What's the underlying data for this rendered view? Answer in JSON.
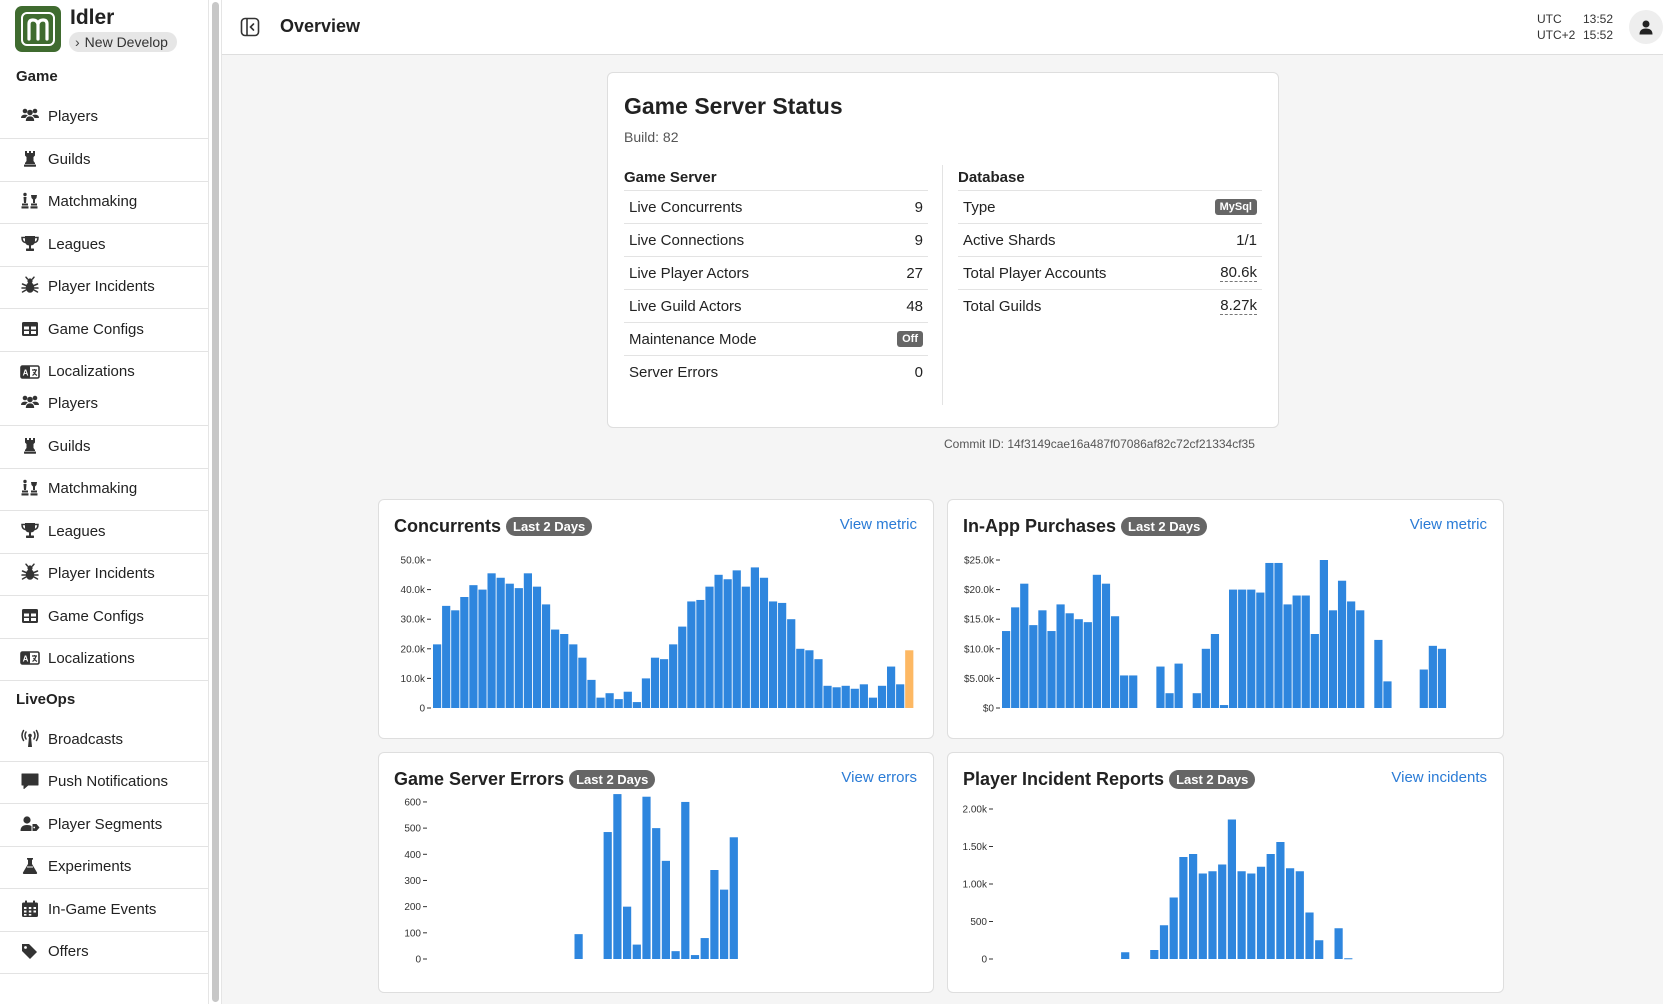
{
  "app": {
    "title": "Idler",
    "environment": "New Develop"
  },
  "sidebar": {
    "sections": [
      {
        "title": "Game",
        "items": [
          {
            "label": "Players",
            "icon": "users-icon"
          },
          {
            "label": "Guilds",
            "icon": "chess-rook-icon"
          },
          {
            "label": "Matchmaking",
            "icon": "chess-icon"
          },
          {
            "label": "Leagues",
            "icon": "trophy-icon"
          },
          {
            "label": "Player Incidents",
            "icon": "bug-icon"
          },
          {
            "label": "Game Configs",
            "icon": "table-icon"
          },
          {
            "label": "Localizations",
            "icon": "language-icon"
          },
          {
            "label": "Players",
            "icon": "users-icon"
          },
          {
            "label": "Guilds",
            "icon": "chess-rook-icon"
          },
          {
            "label": "Matchmaking",
            "icon": "chess-icon"
          },
          {
            "label": "Leagues",
            "icon": "trophy-icon"
          },
          {
            "label": "Player Incidents",
            "icon": "bug-icon"
          },
          {
            "label": "Game Configs",
            "icon": "table-icon"
          },
          {
            "label": "Localizations",
            "icon": "language-icon"
          }
        ]
      },
      {
        "title": "LiveOps",
        "items": [
          {
            "label": "Broadcasts",
            "icon": "broadcast-tower-icon"
          },
          {
            "label": "Push Notifications",
            "icon": "comment-icon"
          },
          {
            "label": "Player Segments",
            "icon": "user-tag-icon"
          },
          {
            "label": "Experiments",
            "icon": "flask-icon"
          },
          {
            "label": "In-Game Events",
            "icon": "calendar-icon"
          },
          {
            "label": "Offers",
            "icon": "tags-icon"
          }
        ]
      }
    ]
  },
  "header": {
    "title": "Overview",
    "clock": [
      {
        "tz": "UTC",
        "time": "13:52"
      },
      {
        "tz": "UTC+2",
        "time": "15:52"
      }
    ]
  },
  "status": {
    "title": "Game Server Status",
    "build": "Build: 82",
    "game_server": {
      "title": "Game Server",
      "rows": [
        {
          "label": "Live Concurrents",
          "value": "9"
        },
        {
          "label": "Live Connections",
          "value": "9"
        },
        {
          "label": "Live Player Actors",
          "value": "27"
        },
        {
          "label": "Live Guild Actors",
          "value": "48"
        },
        {
          "label": "Maintenance Mode",
          "value": "Off",
          "style": "pill"
        },
        {
          "label": "Server Errors",
          "value": "0"
        }
      ]
    },
    "database": {
      "title": "Database",
      "rows": [
        {
          "label": "Type",
          "value": "MySql",
          "style": "pill"
        },
        {
          "label": "Active Shards",
          "value": "1/1"
        },
        {
          "label": "Total Player Accounts",
          "value": "80.6k",
          "style": "dashed"
        },
        {
          "label": "Total Guilds",
          "value": "8.27k",
          "style": "dashed"
        }
      ]
    },
    "commit": "Commit ID: 14f3149cae16a487f07086af82c72cf21334cf35"
  },
  "colors": {
    "bar": "#2e86de",
    "bar_highlight": "#fdb863",
    "link": "#2a7bd6"
  },
  "chart_data": [
    {
      "type": "bar",
      "title": "Concurrents",
      "badge": "Last 2 Days",
      "link": "View metric",
      "yticks": [
        0,
        10000,
        20000,
        30000,
        40000,
        50000
      ],
      "ytick_labels": [
        "0",
        "10.0k",
        "20.0k",
        "30.0k",
        "40.0k",
        "50.0k"
      ],
      "ylim": [
        0,
        50000
      ],
      "values": [
        21500,
        34500,
        33000,
        37500,
        41500,
        40000,
        45500,
        44000,
        42000,
        40500,
        45500,
        41000,
        35000,
        26500,
        25000,
        21500,
        17000,
        9500,
        3500,
        5000,
        3000,
        5500,
        2000,
        10000,
        17000,
        16500,
        21500,
        27500,
        36000,
        36500,
        41000,
        45000,
        43500,
        46500,
        41000,
        47500,
        44000,
        36000,
        35500,
        30000,
        20000,
        19500,
        16500,
        7500,
        7000,
        7500,
        6500,
        8000,
        3500,
        7500,
        14000,
        8000,
        19500
      ],
      "highlight_last": true
    },
    {
      "type": "bar",
      "title": "In-App Purchases",
      "badge": "Last 2 Days",
      "link": "View metric",
      "yticks": [
        0,
        5000,
        10000,
        15000,
        20000,
        25000
      ],
      "ytick_labels": [
        "$0",
        "$5.00k",
        "$10.0k",
        "$15.0k",
        "$20.0k",
        "$25.0k"
      ],
      "ylim": [
        0,
        25000
      ],
      "values": [
        13000,
        17000,
        21000,
        14000,
        16500,
        13000,
        17500,
        16000,
        15000,
        14500,
        22500,
        21000,
        15500,
        5500,
        5500,
        0,
        0,
        7000,
        2500,
        7500,
        0,
        2500,
        10000,
        12500,
        500,
        20000,
        20000,
        20000,
        19500,
        24500,
        24500,
        17500,
        19000,
        19000,
        12500,
        25000,
        16500,
        21500,
        18000,
        16500,
        0,
        11500,
        4500,
        0,
        0,
        0,
        6500,
        10500,
        10000
      ]
    },
    {
      "type": "bar",
      "title": "Game Server Errors",
      "badge": "Last 2 Days",
      "link": "View errors",
      "yticks": [
        0,
        100,
        200,
        300,
        400,
        500,
        600
      ],
      "ytick_labels": [
        "0",
        "100",
        "200",
        "300",
        "400",
        "500",
        "600"
      ],
      "ylim": [
        0,
        680
      ],
      "x_start": 15,
      "values": [
        95,
        0,
        0,
        485,
        630,
        200,
        55,
        620,
        500,
        375,
        30,
        600,
        15,
        80,
        340,
        265,
        465
      ]
    },
    {
      "type": "bar",
      "title": "Player Incident Reports",
      "badge": "Last 2 Days",
      "link": "View incidents",
      "yticks": [
        0,
        500,
        1000,
        1500,
        2000
      ],
      "ytick_labels": [
        "0",
        "500",
        "1.00k",
        "1.50k",
        "2.00k"
      ],
      "ylim": [
        0,
        2000
      ],
      "x_start": 13,
      "values": [
        90,
        0,
        0,
        120,
        450,
        820,
        1360,
        1400,
        1140,
        1170,
        1260,
        1860,
        1170,
        1140,
        1230,
        1400,
        1560,
        1210,
        1170,
        620,
        250,
        0,
        410,
        10
      ]
    }
  ]
}
